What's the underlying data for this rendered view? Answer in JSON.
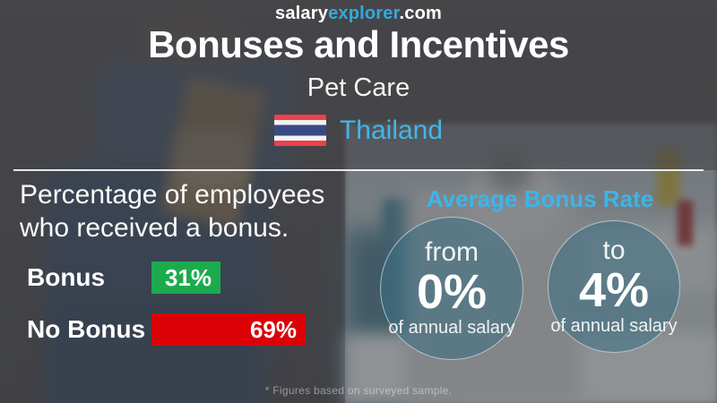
{
  "brand": {
    "part1": "salary",
    "part2": "explorer",
    "part3": ".com"
  },
  "header": {
    "title": "Bonuses and Incentives",
    "subtitle": "Pet Care",
    "country": "Thailand"
  },
  "left_panel": {
    "heading_line1": "Percentage of employees",
    "heading_line2": "who received a bonus.",
    "rows": [
      {
        "label": "Bonus",
        "value": "31%",
        "pct": 31,
        "color": "#1daa4e"
      },
      {
        "label": "No Bonus",
        "value": "69%",
        "pct": 69,
        "color": "#da0207"
      }
    ]
  },
  "right_panel": {
    "heading": "Average Bonus Rate",
    "circles": [
      {
        "qualifier": "from",
        "value": "0%",
        "caption": "of annual salary"
      },
      {
        "qualifier": "to",
        "value": "4%",
        "caption": "of annual salary"
      }
    ]
  },
  "footer": {
    "note": "* Figures based on surveyed sample."
  },
  "colors": {
    "background_dark": "#58585a",
    "accent_blue": "#3cb5e8",
    "bar_green": "#1daa4e",
    "bar_red": "#da0207",
    "flag_red": "#ee404d",
    "flag_blue": "#3a4a85",
    "text_white": "#ffffff"
  },
  "chart_data": {
    "type": "bar",
    "title": "Percentage of employees who received a bonus.",
    "categories": [
      "Bonus",
      "No Bonus"
    ],
    "values": [
      31,
      69
    ],
    "unit": "%",
    "series_colors": [
      "#1daa4e",
      "#da0207"
    ],
    "xlim": [
      0,
      69
    ],
    "orientation": "horizontal",
    "annotations": [
      "Average Bonus Rate: from 0% to 4% of annual salary",
      "* Figures based on surveyed sample."
    ]
  }
}
